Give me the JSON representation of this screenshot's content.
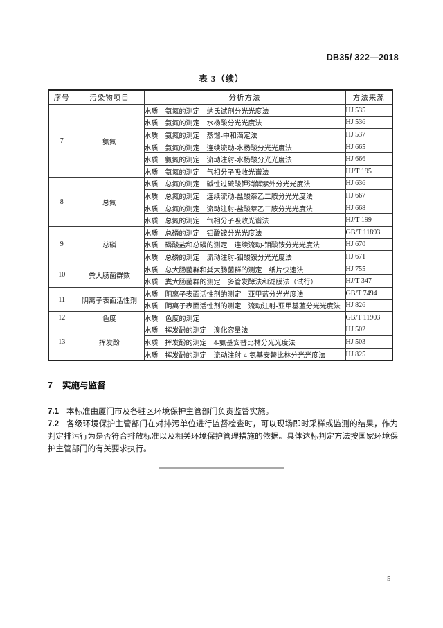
{
  "header": {
    "doc_code": "DB35/ 322—2018"
  },
  "table": {
    "title": "表 3（续）",
    "columns": [
      "序号",
      "污染物项目",
      "分析方法",
      "方法来源"
    ],
    "groups": [
      {
        "no": "7",
        "item": "氨氮",
        "methods": [
          {
            "method": "水质　氨氮的测定　纳氏试剂分光光度法",
            "source": "HJ 535"
          },
          {
            "method": "水质　氨氮的测定　水杨酸分光光度法",
            "source": "HJ 536"
          },
          {
            "method": "水质　氨氮的测定　蒸馏-中和滴定法",
            "source": "HJ 537"
          },
          {
            "method": "水质　氨氮的测定　连续流动-水杨酸分光光度法",
            "source": "HJ 665"
          },
          {
            "method": "水质　氨氮的测定　流动注射-水杨酸分光光度法",
            "source": "HJ 666"
          },
          {
            "method": "水质　氨氮的测定　气相分子吸收光谱法",
            "source": "HJ/T 195"
          }
        ]
      },
      {
        "no": "8",
        "item": "总氮",
        "methods": [
          {
            "method": "水质　总氮的测定　碱性过硫酸钾消解紫外分光光度法",
            "source": "HJ 636"
          },
          {
            "method": "水质　总氮的测定　连续流动-盐酸萘乙二胺分光光度法",
            "source": "HJ 667"
          },
          {
            "method": "水质　总氮的测定　流动注射-盐酸萘乙二胺分光光度法",
            "source": "HJ 668"
          },
          {
            "method": "水质　总氮的测定　气相分子吸收光谱法",
            "source": "HJ/T 199"
          }
        ]
      },
      {
        "no": "9",
        "item": "总磷",
        "methods": [
          {
            "method": "水质　总磷的测定　钼酸铵分光光度法",
            "source": "GB/T 11893"
          },
          {
            "method": "水质　磷酸盐和总磷的测定　连续流动-钼酸铵分光光度法",
            "source": "HJ 670"
          },
          {
            "method": "水质　总磷的测定　流动注射-钼酸铵分光光度法",
            "source": "HJ 671"
          }
        ]
      },
      {
        "no": "10",
        "item": "粪大肠菌群数",
        "methods": [
          {
            "method": "水质　总大肠菌群和粪大肠菌群的测定　纸片快速法",
            "source": "HJ 755"
          },
          {
            "method": "水质　粪大肠菌群的测定　多管发酵法和滤膜法（试行）",
            "source": "HJ/T 347"
          }
        ]
      },
      {
        "no": "11",
        "item": "阴离子表面活性剂",
        "methods": [
          {
            "method": "水质　阴离子表面活性剂的测定　亚甲蓝分光光度法",
            "source": "GB/T 7494"
          },
          {
            "method": "水质　阴离子表面活性剂的测定　流动注射-亚甲基蓝分光光度法",
            "source": "HJ 826"
          }
        ]
      },
      {
        "no": "12",
        "item": "色度",
        "methods": [
          {
            "method": "水质　色度的测定",
            "source": "GB/T 11903"
          }
        ]
      },
      {
        "no": "13",
        "item": "挥发酚",
        "methods": [
          {
            "method": "水质　挥发酚的测定　溴化容量法",
            "source": "HJ 502"
          },
          {
            "method": "水质　挥发酚的测定　4-氨基安替比林分光光度法",
            "source": "HJ 503"
          },
          {
            "method": "水质　挥发酚的测定　流动注射-4-氨基安替比林分光光度法",
            "source": "HJ 825"
          }
        ]
      }
    ]
  },
  "section": {
    "number": "7",
    "heading": "实施与监督",
    "paragraphs": [
      {
        "number": "7.1",
        "text": "本标准由厦门市及各驻区环境保护主管部门负责监督实施。"
      },
      {
        "number": "7.2",
        "text": "各级环境保护主管部门在对排污单位进行监督检查时，可以现场即时采样或监测的结果，作为判定排污行为是否符合排放标准以及相关环境保护管理措施的依据。具体达标判定方法按国家环境保护主管部门的有关要求执行。"
      }
    ]
  },
  "footer": {
    "page_number": "5"
  }
}
